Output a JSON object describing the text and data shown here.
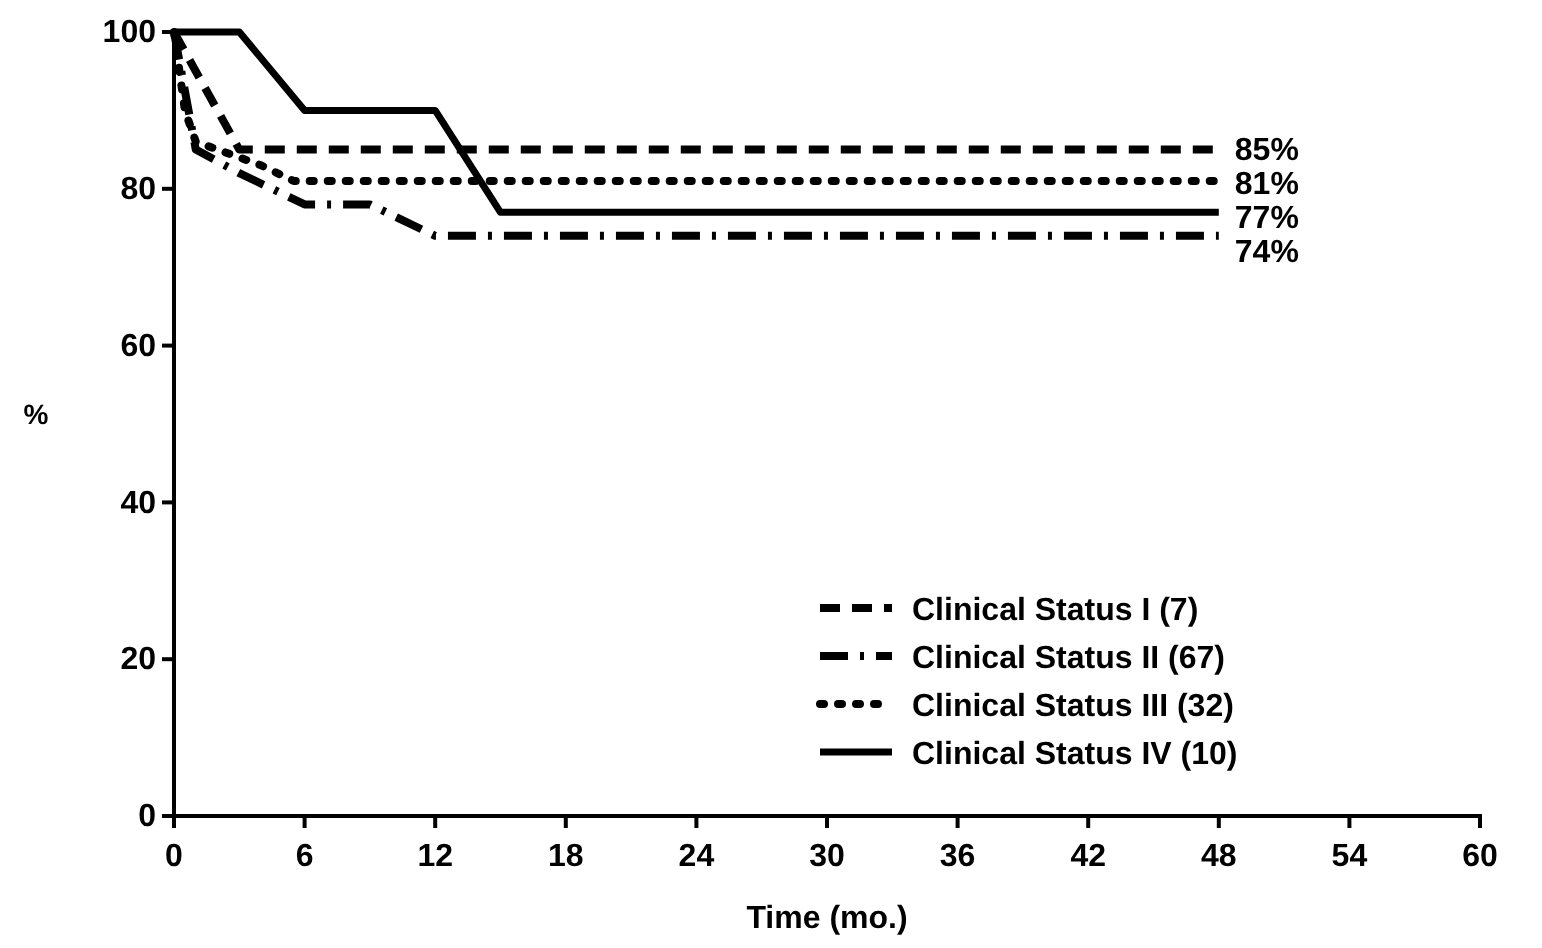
{
  "chart_data": {
    "type": "line",
    "xlabel": "Time (mo.)",
    "ylabel": "%",
    "xlim": [
      0,
      60
    ],
    "xticks": [
      0,
      6,
      12,
      18,
      24,
      30,
      36,
      42,
      48,
      54,
      60
    ],
    "ylim": [
      0,
      100
    ],
    "yticks": [
      0,
      20,
      40,
      60,
      80,
      100
    ],
    "grid": false,
    "legend": "bottom right",
    "marker": "none",
    "series": [
      {
        "name": "Clinical Status I (7)",
        "color": "#000000",
        "line_style": "dashed",
        "x": [
          0,
          1,
          3,
          48
        ],
        "values": [
          100,
          95,
          85,
          85
        ],
        "value_labels": [
          null,
          null,
          null,
          "85%"
        ]
      },
      {
        "name": "Clinical Status II (67)",
        "color": "#000000",
        "line_style": "dashdot",
        "x": [
          0,
          1,
          3,
          6,
          9,
          12,
          48
        ],
        "values": [
          100,
          85,
          82,
          78,
          78,
          74,
          74
        ],
        "value_labels": [
          null,
          null,
          null,
          null,
          null,
          null,
          "74%"
        ]
      },
      {
        "name": "Clinical Status III (32)",
        "color": "#000000",
        "line_style": "dotted",
        "x": [
          0,
          0.5,
          1,
          4,
          5.5,
          48
        ],
        "values": [
          100,
          90,
          86,
          83,
          81,
          81
        ],
        "value_labels": [
          null,
          null,
          null,
          null,
          null,
          "81%"
        ]
      },
      {
        "name": "Clinical Status IV (10)",
        "color": "#000000",
        "line_style": "solid",
        "x": [
          0,
          3,
          6,
          12,
          15,
          48
        ],
        "values": [
          100,
          100,
          90,
          90,
          77,
          77
        ],
        "value_labels": [
          null,
          null,
          null,
          null,
          null,
          "77%"
        ]
      }
    ]
  }
}
